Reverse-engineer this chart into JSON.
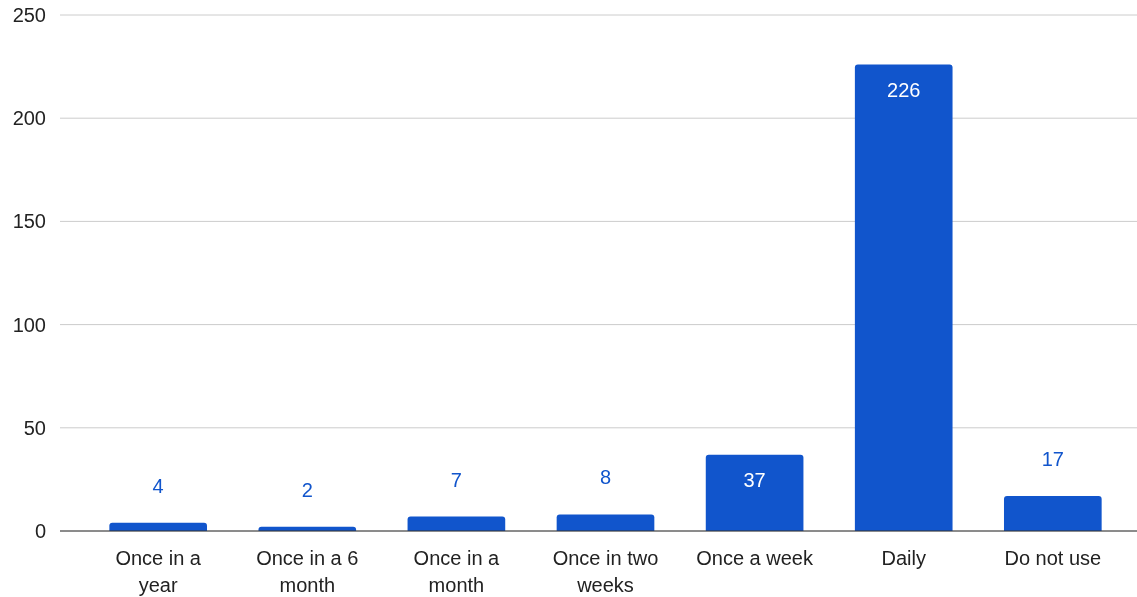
{
  "chart_data": {
    "type": "bar",
    "categories": [
      "Once in a year",
      "Once in a 6 month",
      "Once in a month",
      "Once in two weeks",
      "Once a week",
      "Daily",
      "Do not use"
    ],
    "values": [
      4,
      2,
      7,
      8,
      37,
      226,
      17
    ],
    "color": "#1155cc",
    "ylim": [
      0,
      250
    ],
    "yticks": [
      0,
      50,
      100,
      150,
      200,
      250
    ],
    "grid": "y",
    "data_labels": true
  }
}
